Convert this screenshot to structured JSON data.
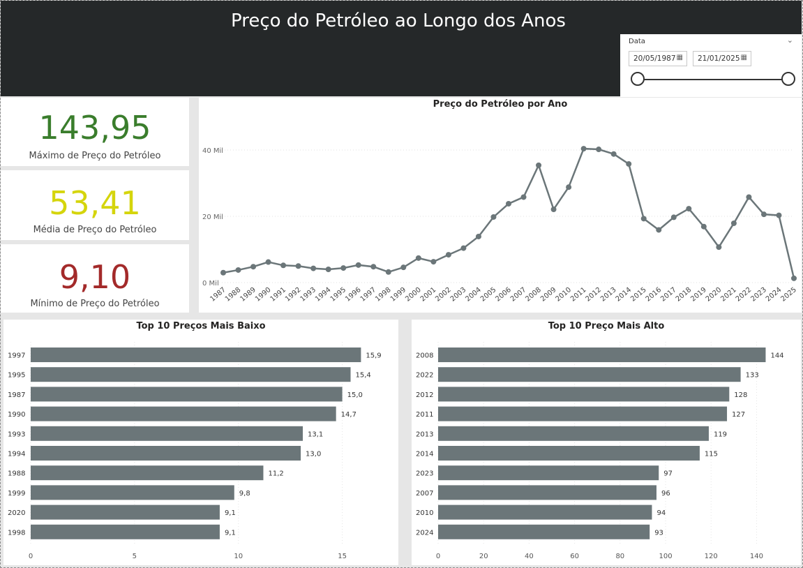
{
  "header": {
    "title": "Preço do Petróleo ao Longo dos Anos"
  },
  "slicer": {
    "label": "Data",
    "start_date": "20/05/1987",
    "end_date": "21/01/2025",
    "range": [
      0,
      1
    ]
  },
  "cards": {
    "max": {
      "value": "143,95",
      "label": "Máximo de Preço do Petróleo",
      "color": "#3a7d2c"
    },
    "avg": {
      "value": "53,41",
      "label": "Média de Preço do Petróleo",
      "color": "#d5d50c"
    },
    "min": {
      "value": "9,10",
      "label": "Mínimo de Preço do Petróleo",
      "color": "#a32a2a"
    }
  },
  "colors": {
    "series": "#6b7679"
  },
  "line_chart": {
    "title": "Preço do Petróleo por Ano",
    "chart_data": {
      "type": "line",
      "x": [
        1987,
        1988,
        1989,
        1990,
        1991,
        1992,
        1993,
        1994,
        1995,
        1996,
        1997,
        1998,
        1999,
        2000,
        2001,
        2002,
        2003,
        2004,
        2005,
        2006,
        2007,
        2008,
        2009,
        2010,
        2011,
        2012,
        2013,
        2014,
        2015,
        2016,
        2017,
        2018,
        2019,
        2020,
        2021,
        2022,
        2023,
        2024,
        2025
      ],
      "y": [
        3.0,
        3.8,
        4.8,
        6.2,
        5.2,
        5.0,
        4.3,
        4.0,
        4.4,
        5.3,
        4.8,
        3.2,
        4.6,
        7.4,
        6.3,
        8.4,
        10.4,
        13.9,
        19.8,
        23.8,
        25.8,
        35.4,
        22.1,
        28.8,
        40.4,
        40.2,
        38.8,
        35.8,
        19.3,
        15.9,
        19.7,
        22.3,
        16.9,
        10.7,
        17.9,
        25.8,
        20.6,
        20.3,
        1.3
      ],
      "x_tick_labels": [
        "1987",
        "1988",
        "1989",
        "1990",
        "1991",
        "1992",
        "1993",
        "1994",
        "1995",
        "1996",
        "1997",
        "1998",
        "1999",
        "2000",
        "2001",
        "2002",
        "2003",
        "2004",
        "2005",
        "2006",
        "2007",
        "2008",
        "2009",
        "2010",
        "2011",
        "2012",
        "2013",
        "2014",
        "2015",
        "2016",
        "2017",
        "2018",
        "2019",
        "2020",
        "2021",
        "2022",
        "2023",
        "2024",
        "2025"
      ],
      "y_ticks": [
        0,
        20,
        40
      ],
      "y_tick_labels": [
        "0 Mil",
        "20 Mil",
        "40 Mil"
      ],
      "ylim": [
        0,
        44
      ],
      "grid": true
    }
  },
  "low_chart": {
    "title": "Top 10 Preços Mais Baixo",
    "chart_data": {
      "type": "bar",
      "orientation": "horizontal",
      "categories": [
        "1997",
        "1995",
        "1987",
        "1990",
        "1993",
        "1994",
        "1988",
        "1999",
        "2020",
        "1998"
      ],
      "values": [
        15.9,
        15.4,
        15.0,
        14.7,
        13.1,
        13.0,
        11.2,
        9.8,
        9.1,
        9.1
      ],
      "value_labels": [
        "15,9",
        "15,4",
        "15,0",
        "14,7",
        "13,1",
        "13,0",
        "11,2",
        "9,8",
        "9,1",
        "9,1"
      ],
      "x_ticks": [
        0,
        5,
        10,
        15
      ],
      "x_tick_labels": [
        "0",
        "5",
        "10",
        "15"
      ],
      "xlim": [
        0,
        17.7
      ]
    }
  },
  "high_chart": {
    "title": "Top 10 Preço Mais Alto",
    "chart_data": {
      "type": "bar",
      "orientation": "horizontal",
      "categories": [
        "2008",
        "2022",
        "2012",
        "2011",
        "2013",
        "2014",
        "2023",
        "2007",
        "2010",
        "2024"
      ],
      "values": [
        144,
        133,
        128,
        127,
        119,
        115,
        97,
        96,
        94,
        93
      ],
      "value_labels": [
        "144",
        "133",
        "128",
        "127",
        "119",
        "115",
        "97",
        "96",
        "94",
        "93"
      ],
      "x_ticks": [
        0,
        20,
        40,
        60,
        80,
        100,
        120,
        140
      ],
      "x_tick_labels": [
        "0",
        "20",
        "40",
        "60",
        "80",
        "100",
        "120",
        "140"
      ],
      "xlim": [
        0,
        159.5
      ]
    }
  }
}
